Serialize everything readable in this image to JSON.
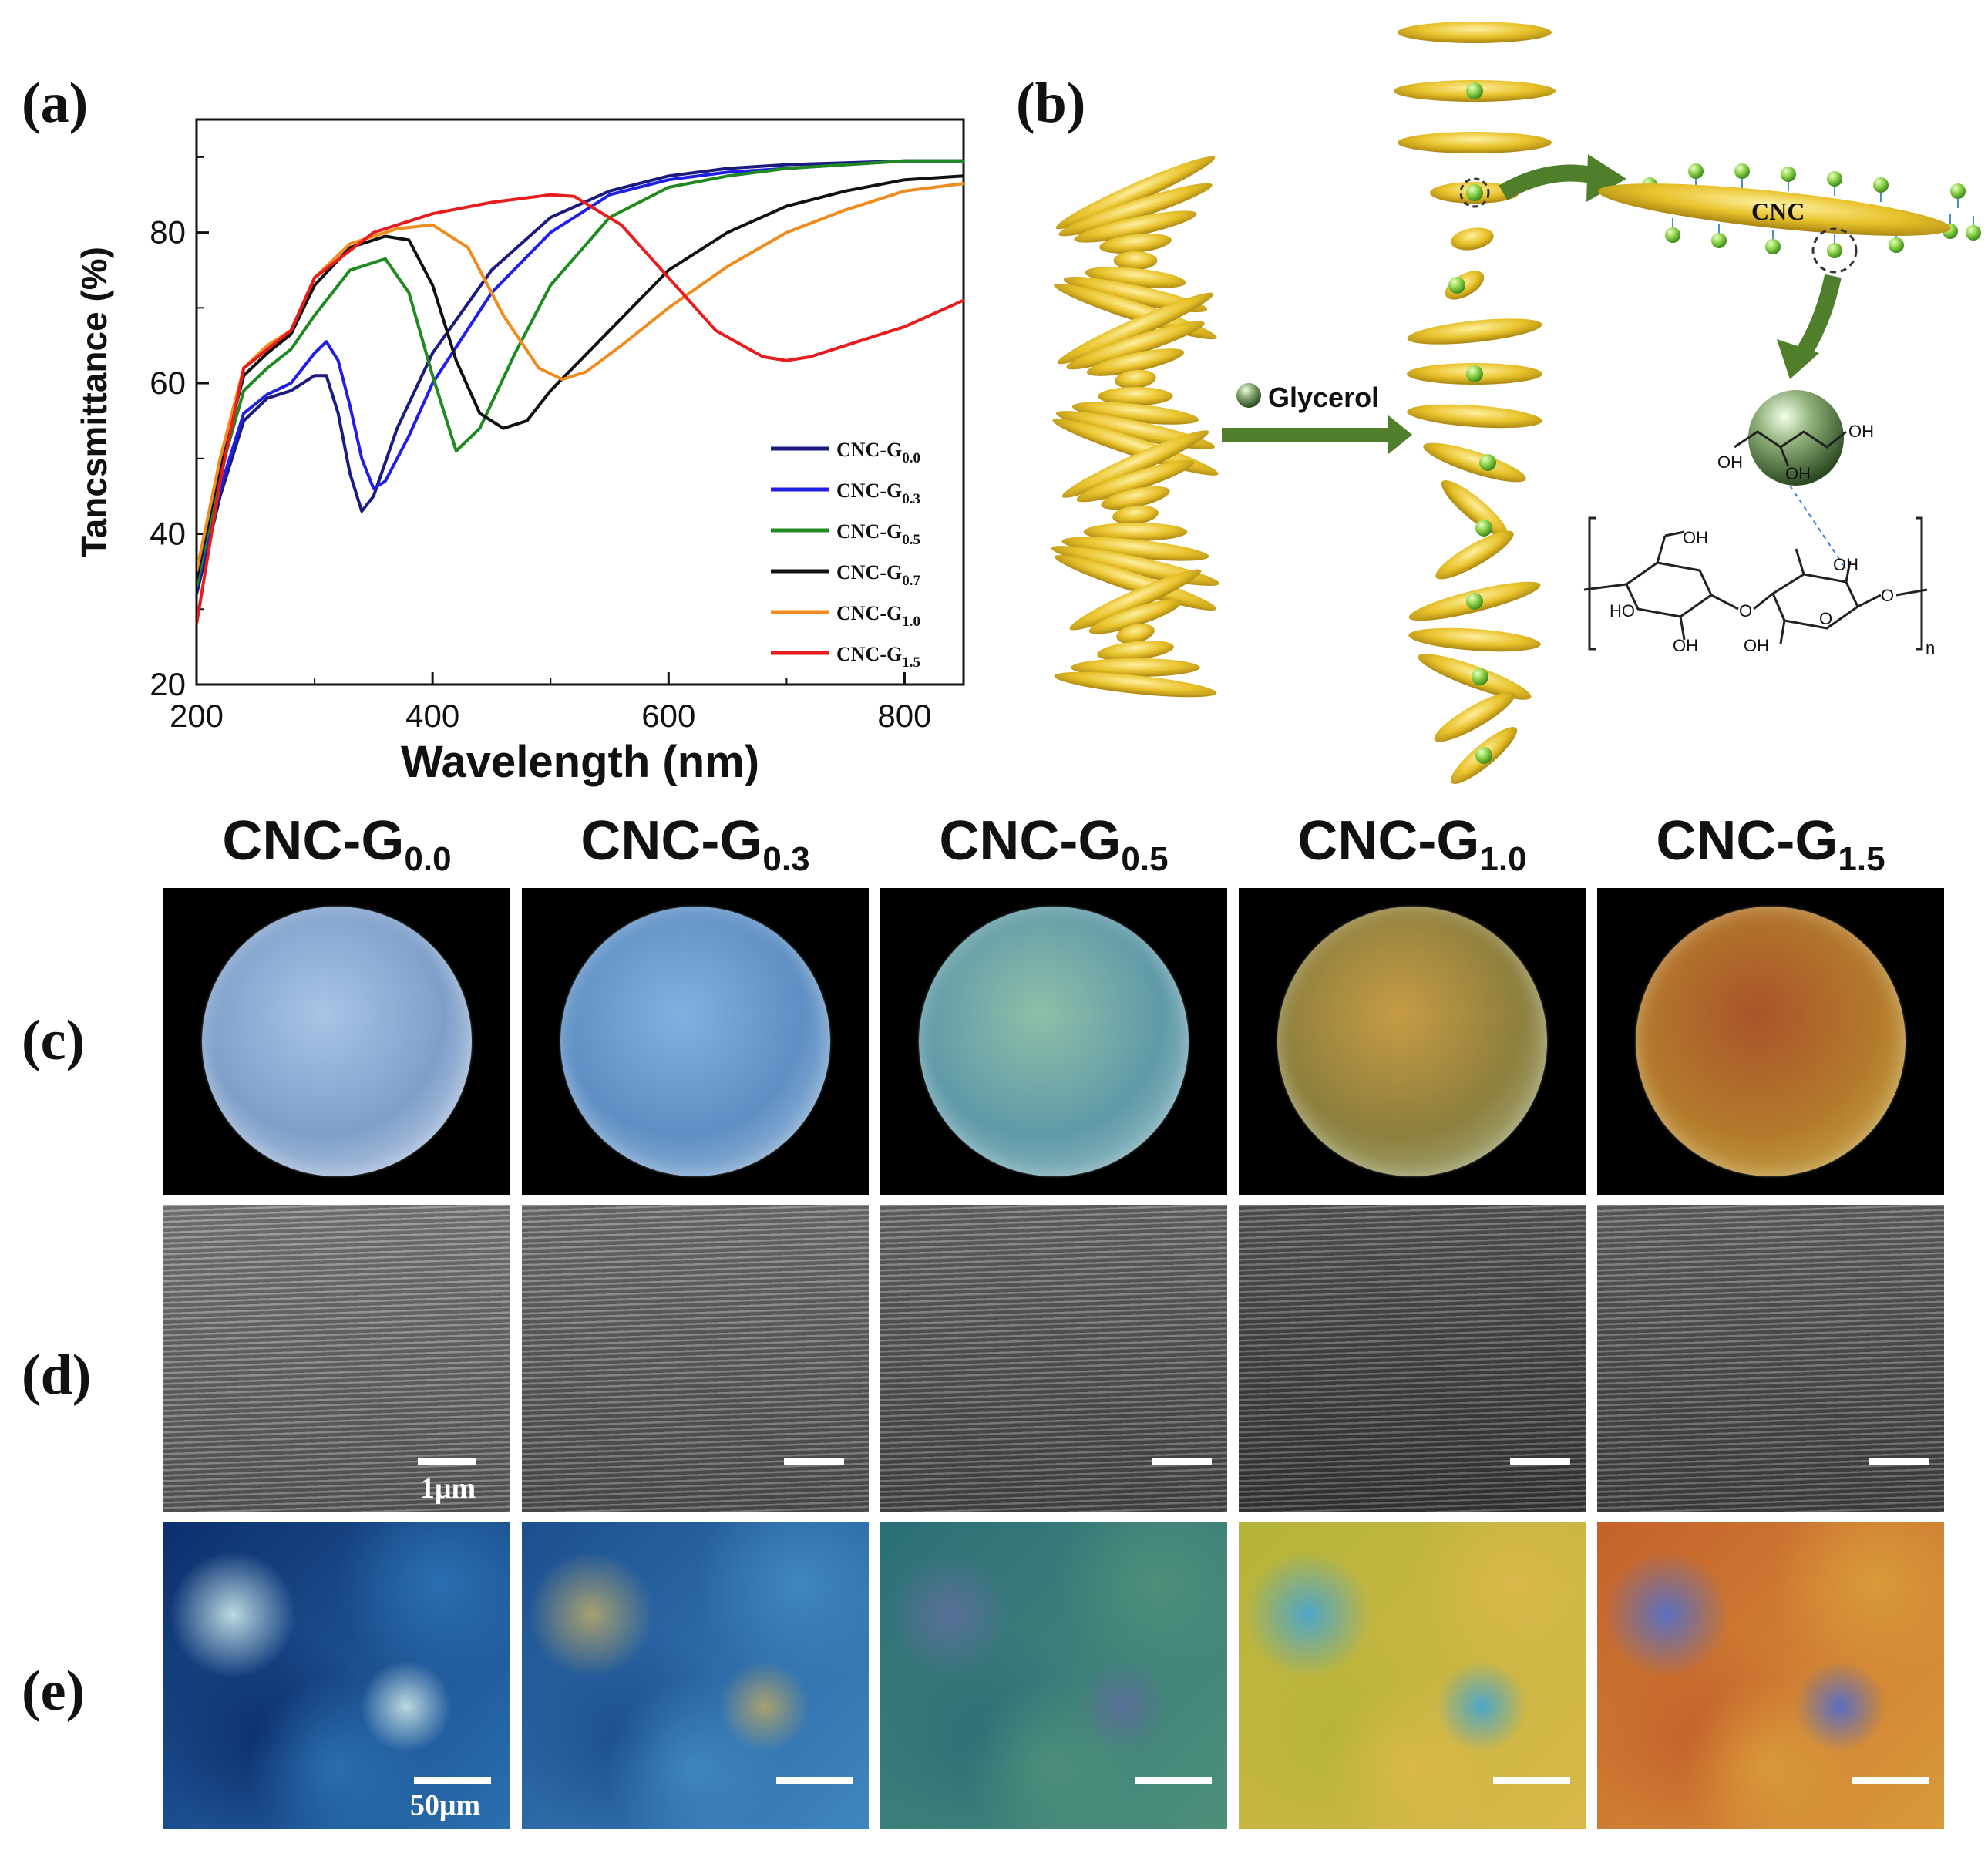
{
  "panels": {
    "a": "(a)",
    "b": "(b)",
    "c": "(c)",
    "d": "(d)",
    "e": "(e)"
  },
  "chart_data": {
    "type": "line",
    "xlabel": "Wavelength (nm)",
    "ylabel": "Tancsmittance (%)",
    "xlim": [
      200,
      850
    ],
    "ylim": [
      20,
      95
    ],
    "xticks": [
      200,
      400,
      600,
      800
    ],
    "yticks": [
      20,
      40,
      60,
      80
    ],
    "grid": false,
    "legend_position": "bottom-right",
    "series": [
      {
        "name": "CNC-G0.0",
        "label_main": "CNC-G",
        "label_sub": "0.0",
        "color": "#1a1a80",
        "points": [
          [
            200,
            32
          ],
          [
            220,
            45
          ],
          [
            240,
            55
          ],
          [
            260,
            58
          ],
          [
            280,
            59
          ],
          [
            300,
            61
          ],
          [
            310,
            61
          ],
          [
            320,
            56
          ],
          [
            330,
            48
          ],
          [
            340,
            43
          ],
          [
            350,
            45
          ],
          [
            370,
            54
          ],
          [
            400,
            64
          ],
          [
            450,
            75
          ],
          [
            500,
            82
          ],
          [
            550,
            85.5
          ],
          [
            600,
            87.5
          ],
          [
            650,
            88.5
          ],
          [
            700,
            89
          ],
          [
            800,
            89.5
          ],
          [
            850,
            89.5
          ]
        ]
      },
      {
        "name": "CNC-G0.3",
        "label_main": "CNC-G",
        "label_sub": "0.3",
        "color": "#1f1fe6",
        "points": [
          [
            200,
            33
          ],
          [
            220,
            46
          ],
          [
            240,
            56
          ],
          [
            260,
            58.5
          ],
          [
            280,
            60
          ],
          [
            300,
            64
          ],
          [
            310,
            65.5
          ],
          [
            320,
            63
          ],
          [
            330,
            57
          ],
          [
            340,
            50
          ],
          [
            350,
            46
          ],
          [
            360,
            47
          ],
          [
            380,
            53
          ],
          [
            400,
            60
          ],
          [
            450,
            72
          ],
          [
            500,
            80
          ],
          [
            550,
            85
          ],
          [
            600,
            87
          ],
          [
            650,
            88
          ],
          [
            700,
            88.5
          ],
          [
            800,
            89.5
          ],
          [
            850,
            89.5
          ]
        ]
      },
      {
        "name": "CNC-G0.5",
        "label_main": "CNC-G",
        "label_sub": "0.5",
        "color": "#1f8a1f",
        "points": [
          [
            200,
            33
          ],
          [
            220,
            48
          ],
          [
            240,
            59
          ],
          [
            260,
            62
          ],
          [
            280,
            64.5
          ],
          [
            300,
            69
          ],
          [
            330,
            75
          ],
          [
            360,
            76.5
          ],
          [
            380,
            72
          ],
          [
            400,
            61
          ],
          [
            420,
            51
          ],
          [
            440,
            54
          ],
          [
            470,
            64
          ],
          [
            500,
            73
          ],
          [
            550,
            82
          ],
          [
            600,
            86
          ],
          [
            650,
            87.5
          ],
          [
            700,
            88.5
          ],
          [
            800,
            89.5
          ],
          [
            850,
            89.5
          ]
        ]
      },
      {
        "name": "CNC-G0.7",
        "label_main": "CNC-G",
        "label_sub": "0.7",
        "color": "#111111",
        "points": [
          [
            200,
            34
          ],
          [
            220,
            49
          ],
          [
            240,
            61
          ],
          [
            260,
            64
          ],
          [
            280,
            66.5
          ],
          [
            300,
            73
          ],
          [
            330,
            78
          ],
          [
            360,
            79.5
          ],
          [
            380,
            79
          ],
          [
            400,
            73
          ],
          [
            420,
            63
          ],
          [
            440,
            56
          ],
          [
            460,
            54
          ],
          [
            480,
            55
          ],
          [
            500,
            59
          ],
          [
            550,
            67
          ],
          [
            600,
            75
          ],
          [
            650,
            80
          ],
          [
            700,
            83.5
          ],
          [
            750,
            85.5
          ],
          [
            800,
            87
          ],
          [
            850,
            87.5
          ]
        ]
      },
      {
        "name": "CNC-G1.0",
        "label_main": "CNC-G",
        "label_sub": "1.0",
        "color": "#f08c1e",
        "points": [
          [
            200,
            35
          ],
          [
            220,
            50
          ],
          [
            240,
            62
          ],
          [
            260,
            65
          ],
          [
            280,
            67
          ],
          [
            300,
            74
          ],
          [
            330,
            78.5
          ],
          [
            370,
            80.5
          ],
          [
            400,
            81
          ],
          [
            430,
            78
          ],
          [
            460,
            69
          ],
          [
            490,
            62
          ],
          [
            510,
            60.5
          ],
          [
            530,
            61.5
          ],
          [
            560,
            65
          ],
          [
            600,
            70
          ],
          [
            650,
            75.5
          ],
          [
            700,
            80
          ],
          [
            750,
            83
          ],
          [
            800,
            85.5
          ],
          [
            850,
            86.5
          ]
        ]
      },
      {
        "name": "CNC-G1.5",
        "label_main": "CNC-G",
        "label_sub": "1.5",
        "color": "#e81c1c",
        "points": [
          [
            200,
            28
          ],
          [
            220,
            47
          ],
          [
            240,
            62
          ],
          [
            260,
            64.5
          ],
          [
            280,
            67
          ],
          [
            300,
            74
          ],
          [
            350,
            80
          ],
          [
            400,
            82.5
          ],
          [
            450,
            84
          ],
          [
            500,
            85
          ],
          [
            520,
            84.8
          ],
          [
            560,
            81
          ],
          [
            600,
            74
          ],
          [
            640,
            67
          ],
          [
            680,
            63.5
          ],
          [
            700,
            63
          ],
          [
            720,
            63.5
          ],
          [
            760,
            65.5
          ],
          [
            800,
            67.5
          ],
          [
            850,
            71
          ]
        ]
      }
    ]
  },
  "schematic": {
    "glycerol_label": "Glycerol",
    "cnc_label": "CNC",
    "oh_label": "OH",
    "ho_label": "HO",
    "o_label": "O",
    "n_label": "n"
  },
  "columns": [
    {
      "main": "CNC-G",
      "sub": "0.0"
    },
    {
      "main": "CNC-G",
      "sub": "0.3"
    },
    {
      "main": "CNC-G",
      "sub": "0.5"
    },
    {
      "main": "CNC-G",
      "sub": "1.0"
    },
    {
      "main": "CNC-G",
      "sub": "1.5"
    }
  ],
  "photo_colors": [
    {
      "center": "#a8c4e6",
      "mid": "#7f9fca",
      "edge": "#c9d6e8"
    },
    {
      "center": "#7fb1e0",
      "mid": "#5e8fc4",
      "edge": "#a5c2de"
    },
    {
      "center": "#8fbfa8",
      "mid": "#5f9aa8",
      "edge": "#9cc1c8"
    },
    {
      "center": "#c69b45",
      "mid": "#8d7f3d",
      "edge": "#a9b58a"
    },
    {
      "center": "#a9542a",
      "mid": "#b47a2c",
      "edge": "#c9b04e"
    }
  ],
  "sem_tones": [
    "#7a7a7a",
    "#6c6c6c",
    "#606060",
    "#4a4a4a",
    "#595959"
  ],
  "pom_colors": [
    {
      "a": "#0d2f6e",
      "b": "#2a6fb0",
      "c": "#bcd8e0"
    },
    {
      "a": "#1c4f8f",
      "b": "#3f86c0",
      "c": "#a7a070"
    },
    {
      "a": "#2b6f78",
      "b": "#4d8f7a",
      "c": "#5a6f98"
    },
    {
      "a": "#b4b43a",
      "b": "#d9b84a",
      "c": "#4ea6c8"
    },
    {
      "a": "#c4612c",
      "b": "#d99a3a",
      "c": "#5a6fc0"
    }
  ],
  "scale_labels": {
    "sem": "1μm",
    "pom": "50μm"
  }
}
